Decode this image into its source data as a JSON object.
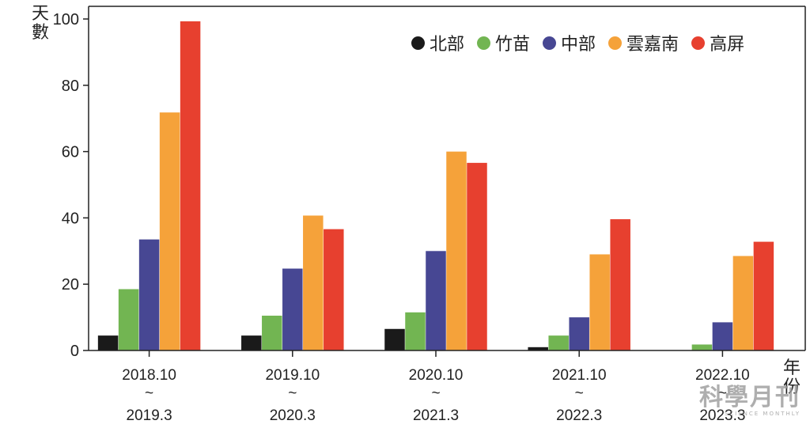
{
  "chart_data": {
    "type": "bar",
    "title": "",
    "ylabel": "天數",
    "xlabel": "年份",
    "ylim": [
      0,
      100
    ],
    "yticks": [
      0,
      20,
      40,
      60,
      80,
      100
    ],
    "categories": [
      {
        "top": "2018.10",
        "mid": "~",
        "bottom": "2019.3"
      },
      {
        "top": "2019.10",
        "mid": "~",
        "bottom": "2020.3"
      },
      {
        "top": "2020.10",
        "mid": "~",
        "bottom": "2021.3"
      },
      {
        "top": "2021.10",
        "mid": "~",
        "bottom": "2022.3"
      },
      {
        "top": "2022.10",
        "mid": "~",
        "bottom": "2023.3"
      }
    ],
    "series": [
      {
        "name": "北部",
        "color": "#1a1a1a",
        "values": [
          4.5,
          4.5,
          6.5,
          1,
          0
        ]
      },
      {
        "name": "竹苗",
        "color": "#72b552",
        "values": [
          18.5,
          10.5,
          11.5,
          4.5,
          1.8
        ]
      },
      {
        "name": "中部",
        "color": "#474793",
        "values": [
          33.5,
          24.7,
          30,
          10,
          8.5
        ]
      },
      {
        "name": "雲嘉南",
        "color": "#f5a23a",
        "values": [
          71.8,
          40.7,
          60,
          29,
          28.5
        ]
      },
      {
        "name": "高屏",
        "color": "#e7402f",
        "values": [
          99.3,
          36.6,
          56.6,
          39.6,
          32.8
        ]
      }
    ],
    "legend_position": "top-right",
    "grid": false
  },
  "watermark": {
    "main": "科學月刊",
    "sub": "SCIENCE MONTHLY"
  }
}
